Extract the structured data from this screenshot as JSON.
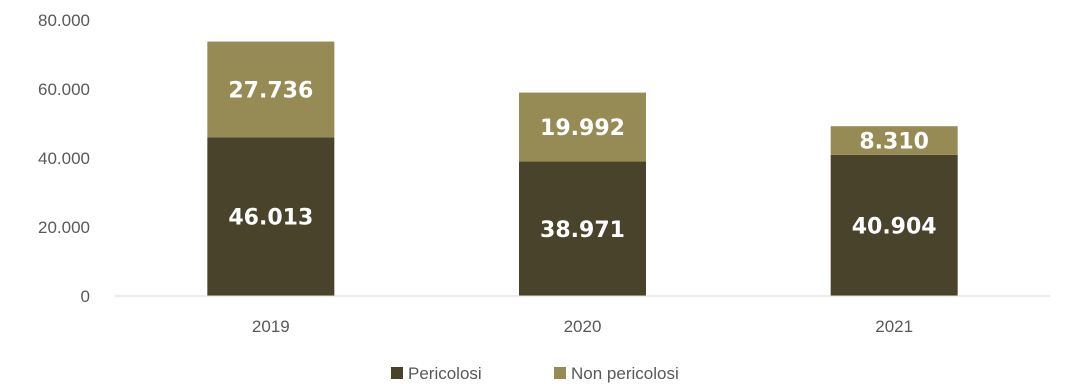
{
  "chart_data": {
    "type": "bar",
    "stacked": true,
    "categories": [
      "2019",
      "2020",
      "2021"
    ],
    "series": [
      {
        "name": "Pericolosi",
        "values": [
          46013,
          38971,
          40904
        ],
        "labels": [
          "46.013",
          "38.971",
          "40.904"
        ],
        "color": "#4a432b"
      },
      {
        "name": "Non pericolosi",
        "values": [
          27736,
          19992,
          8310
        ],
        "labels": [
          "27.736",
          "19.992",
          "8.310"
        ],
        "color": "#968b55"
      }
    ],
    "ylim": [
      0,
      80000
    ],
    "yticks": [
      0,
      20000,
      40000,
      60000,
      80000
    ],
    "ytick_labels": [
      "0",
      "20.000",
      "40.000",
      "60.000",
      "80.000"
    ],
    "title": "",
    "xlabel": "",
    "ylabel": "",
    "grid": false,
    "legend": "bottom",
    "colors": {
      "axis_line": "#d9d9d9",
      "tick_text": "#595959",
      "label_text": "#ffffff"
    }
  }
}
